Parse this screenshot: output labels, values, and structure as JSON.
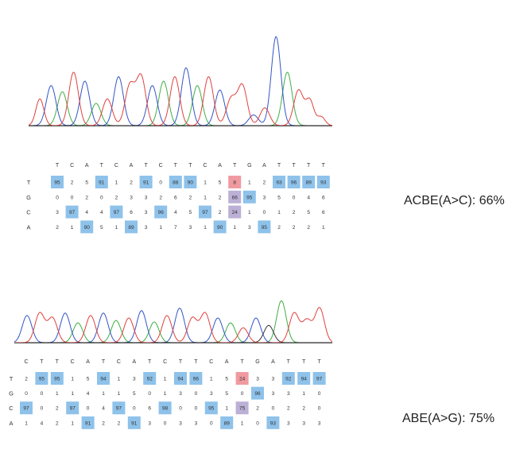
{
  "colors": {
    "A": "#3fae45",
    "C": "#3455c8",
    "G": "#333333",
    "T": "#e0413d",
    "baseline": "#555555",
    "highlight_blue": "#8ec2ea",
    "highlight_red": "#f09aa0",
    "highlight_purple": "#bcb0d6"
  },
  "rows_order": [
    "T",
    "G",
    "C",
    "A"
  ],
  "panels": [
    {
      "label": "ACBE(A>C): 66%",
      "sequence": [
        "T",
        "C",
        "A",
        "T",
        "C",
        "A",
        "T",
        "C",
        "T",
        "T",
        "C",
        "A",
        "T",
        "G",
        "A",
        "T",
        "T",
        "T",
        "T"
      ],
      "table": [
        [
          "95",
          "2",
          "5",
          "91",
          "1",
          "2",
          "91",
          "0",
          "88",
          "90",
          "1",
          "5",
          "8",
          "1",
          "2",
          "93",
          "96",
          "89",
          "93"
        ],
        [
          "0",
          "0",
          "2",
          "0",
          "2",
          "3",
          "3",
          "2",
          "6",
          "2",
          "1",
          "2",
          "66",
          "95",
          "3",
          "5",
          "0",
          "4",
          "6"
        ],
        [
          "3",
          "97",
          "4",
          "4",
          "97",
          "6",
          "3",
          "96",
          "4",
          "5",
          "97",
          "2",
          "24",
          "1",
          "0",
          "1",
          "2",
          "5",
          "6"
        ],
        [
          "2",
          "1",
          "90",
          "5",
          "1",
          "89",
          "3",
          "1",
          "7",
          "3",
          "1",
          "90",
          "1",
          "3",
          "95",
          "2",
          "2",
          "2",
          "1"
        ]
      ],
      "trace_peaks": [
        {
          "base": "T",
          "h": 0.3,
          "w": 5
        },
        {
          "base": "C",
          "h": 0.45,
          "w": 6
        },
        {
          "base": "A",
          "h": 0.38,
          "w": 6
        },
        {
          "base": "T",
          "h": 0.6,
          "w": 6
        },
        {
          "base": "C",
          "h": 0.5,
          "w": 6
        },
        {
          "base": "A",
          "h": 0.25,
          "w": 6
        },
        {
          "base": "T",
          "h": 0.3,
          "w": 6
        },
        {
          "base": "C",
          "h": 0.55,
          "w": 6
        },
        {
          "base": "T",
          "h": 0.45,
          "w": 6
        },
        {
          "base": "T",
          "h": 0.55,
          "w": 6
        },
        {
          "base": "C",
          "h": 0.45,
          "w": 6
        },
        {
          "base": "A",
          "h": 0.5,
          "w": 6
        },
        {
          "base": "T",
          "h": 0.55,
          "w": 6
        },
        {
          "base": "C",
          "h": 0.65,
          "w": 6
        },
        {
          "base": "A",
          "h": 0.45,
          "w": 6
        },
        {
          "base": "T",
          "h": 0.55,
          "w": 6
        },
        {
          "base": "C",
          "h": 0.4,
          "w": 6
        },
        {
          "base": "T",
          "h": 0.3,
          "w": 6
        },
        {
          "base": "T",
          "h": 0.45,
          "w": 6
        },
        {
          "base": "C",
          "h": 0.12,
          "w": 6
        },
        {
          "base": "T",
          "h": 0.2,
          "w": 6
        },
        {
          "base": "C",
          "h": 1.0,
          "w": 6
        },
        {
          "base": "A",
          "h": 0.6,
          "w": 6
        },
        {
          "base": "T",
          "h": 0.4,
          "w": 6
        },
        {
          "base": "T",
          "h": 0.28,
          "w": 5
        },
        {
          "base": "T",
          "h": 0.1,
          "w": 5
        }
      ]
    },
    {
      "label": "ABE(A>G): 75%",
      "sequence": [
        "C",
        "T",
        "T",
        "C",
        "A",
        "T",
        "C",
        "A",
        "T",
        "C",
        "T",
        "T",
        "C",
        "A",
        "T",
        "G",
        "A",
        "T",
        "T",
        "T"
      ],
      "table": [
        [
          "2",
          "95",
          "95",
          "1",
          "5",
          "94",
          "1",
          "3",
          "92",
          "1",
          "94",
          "96",
          "1",
          "5",
          "24",
          "3",
          "3",
          "92",
          "94",
          "97"
        ],
        [
          "0",
          "0",
          "1",
          "1",
          "4",
          "1",
          "1",
          "5",
          "0",
          "1",
          "3",
          "0",
          "3",
          "5",
          "0",
          "96",
          "3",
          "3",
          "1",
          "0"
        ],
        [
          "97",
          "0",
          "2",
          "97",
          "0",
          "4",
          "97",
          "0",
          "6",
          "98",
          "0",
          "0",
          "95",
          "1",
          "75",
          "2",
          "0",
          "2",
          "2",
          "0"
        ],
        [
          "1",
          "4",
          "2",
          "1",
          "91",
          "2",
          "2",
          "91",
          "3",
          "0",
          "3",
          "3",
          "0",
          "89",
          "1",
          "0",
          "93",
          "3",
          "3",
          "3"
        ]
      ],
      "trace_peaks": [
        {
          "base": "C",
          "h": 0.55,
          "w": 6
        },
        {
          "base": "T",
          "h": 0.6,
          "w": 6
        },
        {
          "base": "T",
          "h": 0.5,
          "w": 6
        },
        {
          "base": "C",
          "h": 0.6,
          "w": 6
        },
        {
          "base": "A",
          "h": 0.4,
          "w": 6
        },
        {
          "base": "T",
          "h": 0.55,
          "w": 6
        },
        {
          "base": "C",
          "h": 0.6,
          "w": 6
        },
        {
          "base": "A",
          "h": 0.45,
          "w": 6
        },
        {
          "base": "T",
          "h": 0.5,
          "w": 6
        },
        {
          "base": "C",
          "h": 0.65,
          "w": 6
        },
        {
          "base": "A",
          "h": 0.42,
          "w": 6
        },
        {
          "base": "T",
          "h": 0.55,
          "w": 6
        },
        {
          "base": "C",
          "h": 0.7,
          "w": 6
        },
        {
          "base": "T",
          "h": 0.5,
          "w": 6
        },
        {
          "base": "T",
          "h": 0.6,
          "w": 6
        },
        {
          "base": "C",
          "h": 0.5,
          "w": 6
        },
        {
          "base": "A",
          "h": 0.4,
          "w": 6
        },
        {
          "base": "T",
          "h": 0.3,
          "w": 6
        },
        {
          "base": "C",
          "h": 0.5,
          "w": 6
        },
        {
          "base": "G",
          "h": 0.35,
          "w": 6
        },
        {
          "base": "A",
          "h": 0.85,
          "w": 6
        },
        {
          "base": "T",
          "h": 0.6,
          "w": 6
        },
        {
          "base": "T",
          "h": 0.45,
          "w": 6
        },
        {
          "base": "T",
          "h": 0.7,
          "w": 6
        }
      ]
    }
  ]
}
